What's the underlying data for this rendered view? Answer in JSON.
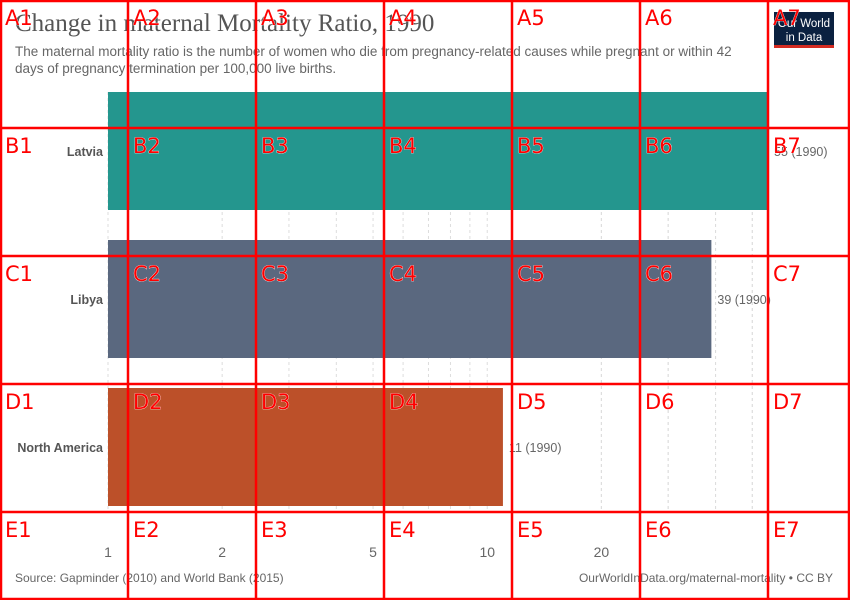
{
  "header": {
    "title": "Change in maternal Mortality Ratio, 1990",
    "subtitle": "The maternal mortality ratio is the number of women who die from pregnancy-related causes while pregnant or within 42 days of pregnancy termination per 100,000 live births."
  },
  "logo": {
    "line1": "Our World",
    "line2": "in Data"
  },
  "footer": {
    "source": "Source: Gapminder (2010) and World Bank (2015)",
    "credit": "OurWorldInData.org/maternal-mortality • CC BY"
  },
  "chart_data": {
    "type": "bar",
    "orientation": "horizontal",
    "x_scale": "log",
    "xlim": [
      1,
      55
    ],
    "ticks": [
      1,
      2,
      5,
      10,
      20
    ],
    "tick_labels": [
      "1",
      "2",
      "5",
      "10",
      "20"
    ],
    "categories": [
      "Latvia",
      "Libya",
      "North America"
    ],
    "values": [
      55,
      39,
      11
    ],
    "value_labels": [
      "55 (1990)",
      "39 (1990)",
      "11 (1990)"
    ],
    "colors": [
      "#24968e",
      "#5a687f",
      "#bc5029"
    ]
  },
  "overlay": {
    "color": "#ff0000",
    "cols": [
      "1",
      "2",
      "3",
      "4",
      "5",
      "6",
      "7"
    ],
    "rows": [
      "A",
      "B",
      "C",
      "D",
      "E"
    ]
  }
}
